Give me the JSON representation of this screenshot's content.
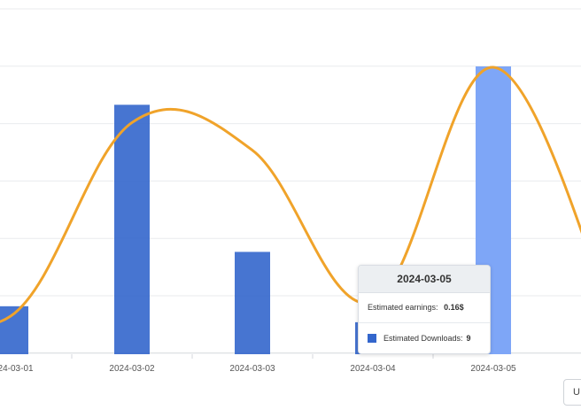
{
  "chart_data": {
    "type": "bar",
    "categories": [
      "2024-03-01",
      "2024-03-02",
      "2024-03-03",
      "2024-03-04",
      "2024-03-05"
    ],
    "series": [
      {
        "name": "Estimated Downloads",
        "type": "bar",
        "values": [
          1.5,
          7.8,
          3.2,
          1.0,
          9
        ],
        "color": "#3366cc"
      },
      {
        "name": "Estimated earnings",
        "type": "line",
        "smooth": true,
        "values": [
          0.07,
          0.14,
          0.13,
          0.075,
          0.16
        ],
        "color": "#f0a32a"
      }
    ],
    "highlight_category": "2024-03-05",
    "highlight_color": "#7ea6f7",
    "grid": true,
    "legend": "none"
  },
  "tooltip": {
    "title": "2024-03-05",
    "earnings_label": "Estimated earnings:",
    "earnings_value": "0.16$",
    "downloads_label": "Estimated Downloads:",
    "downloads_value": "9"
  },
  "corner_button": {
    "label": "U"
  }
}
